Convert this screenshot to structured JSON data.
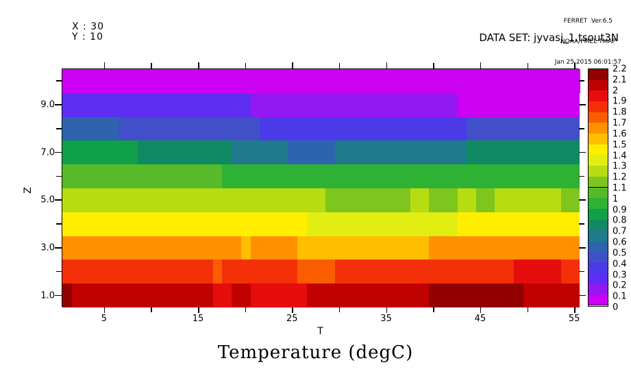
{
  "header": {
    "ferret_line1": "FERRET  Ver.6.5",
    "ferret_line2": "NOAA/PMEL TMAP",
    "ferret_line3": "Jan 25 2015 06:01:57",
    "x_index": "X : 30",
    "y_index": "Y : 10",
    "dataset": "DATA SET: jyvasj_1.tsout3N"
  },
  "title": "Temperature (degC)",
  "axes": {
    "x": {
      "label": "T",
      "major_ticks": [
        5,
        15,
        25,
        35,
        45,
        55
      ],
      "major_labels": [
        "5",
        "15",
        "25",
        "35",
        "45",
        "55"
      ],
      "minor_ticks": [
        10,
        20,
        30,
        40,
        50
      ],
      "min": 0.5,
      "max": 55.5
    },
    "y": {
      "label": "Z",
      "major_ticks": [
        9,
        7,
        5,
        3,
        1
      ],
      "major_labels": [
        "9.0",
        "7.0",
        "5.0",
        "3.0",
        "1.0"
      ],
      "minor_ticks": [
        10,
        8,
        6,
        4,
        2
      ],
      "min": 0.5,
      "max": 10.5
    }
  },
  "colorbar": {
    "min": 0,
    "max": 2.2,
    "step": 0.1,
    "boundary_labels_top_to_bottom": [
      "2.2",
      "2.1",
      "2",
      "1.9",
      "1.8",
      "1.7",
      "1.6",
      "1.5",
      "1.4",
      "1.3",
      "1.2",
      "1.1",
      "1",
      "0.9",
      "0.8",
      "0.7",
      "0.6",
      "0.5",
      "0.4",
      "0.3",
      "0.2",
      "0.1",
      "0"
    ],
    "colors_low_to_high": [
      "#cc00f2",
      "#9318f2",
      "#5d2df2",
      "#4a3ae8",
      "#4150c8",
      "#2e64ad",
      "#1e7a8c",
      "#108a62",
      "#10a04a",
      "#2eb233",
      "#58ba29",
      "#7ec61e",
      "#b8dc12",
      "#e2ee12",
      "#ffee00",
      "#ffbe00",
      "#ff9000",
      "#fa5c00",
      "#f33008",
      "#e60d0d",
      "#c10000",
      "#930000"
    ]
  },
  "chart_data": {
    "type": "heatmap",
    "title": "Temperature (degC)",
    "xlabel": "T",
    "ylabel": "Z",
    "units": "degC",
    "x_range": [
      1,
      55
    ],
    "z_range": [
      1,
      10
    ],
    "value_range": [
      0,
      2.2
    ],
    "note": "segments are [t_from, t_to, band_lower_bound]; cell value lies in band (band, band+0.1)",
    "rows": [
      {
        "z": 10,
        "segments": [
          [
            1,
            55,
            0.0
          ]
        ]
      },
      {
        "z": 9,
        "segments": [
          [
            1,
            20,
            0.2
          ],
          [
            21,
            42,
            0.1
          ],
          [
            43,
            55,
            0.0
          ]
        ]
      },
      {
        "z": 8,
        "segments": [
          [
            1,
            6,
            0.5
          ],
          [
            7,
            21,
            0.4
          ],
          [
            22,
            43,
            0.3
          ],
          [
            44,
            55,
            0.4
          ]
        ]
      },
      {
        "z": 7,
        "segments": [
          [
            1,
            8,
            0.8
          ],
          [
            9,
            18,
            0.7
          ],
          [
            19,
            24,
            0.6
          ],
          [
            25,
            29,
            0.5
          ],
          [
            30,
            43,
            0.6
          ],
          [
            44,
            55,
            0.7
          ]
        ]
      },
      {
        "z": 6,
        "segments": [
          [
            1,
            17,
            1.0
          ],
          [
            18,
            55,
            0.9
          ]
        ]
      },
      {
        "z": 5,
        "segments": [
          [
            1,
            28,
            1.2
          ],
          [
            29,
            37,
            1.1
          ],
          [
            38,
            39,
            1.2
          ],
          [
            40,
            42,
            1.1
          ],
          [
            43,
            44,
            1.2
          ],
          [
            45,
            46,
            1.1
          ],
          [
            47,
            53,
            1.2
          ],
          [
            54,
            55,
            1.1
          ]
        ]
      },
      {
        "z": 4,
        "segments": [
          [
            1,
            26,
            1.4
          ],
          [
            27,
            42,
            1.3
          ],
          [
            43,
            55,
            1.4
          ]
        ]
      },
      {
        "z": 3,
        "segments": [
          [
            1,
            19,
            1.6
          ],
          [
            20,
            20,
            1.5
          ],
          [
            21,
            25,
            1.6
          ],
          [
            26,
            39,
            1.5
          ],
          [
            40,
            55,
            1.6
          ]
        ]
      },
      {
        "z": 2,
        "segments": [
          [
            1,
            16,
            1.8
          ],
          [
            17,
            17,
            1.7
          ],
          [
            18,
            25,
            1.8
          ],
          [
            26,
            29,
            1.7
          ],
          [
            30,
            48,
            1.8
          ],
          [
            49,
            53,
            1.9
          ],
          [
            54,
            55,
            1.8
          ]
        ]
      },
      {
        "z": 1,
        "segments": [
          [
            1,
            1,
            2.1
          ],
          [
            2,
            16,
            2.0
          ],
          [
            17,
            18,
            1.9
          ],
          [
            19,
            20,
            2.0
          ],
          [
            21,
            26,
            1.9
          ],
          [
            27,
            39,
            2.0
          ],
          [
            40,
            49,
            2.1
          ],
          [
            50,
            55,
            2.0
          ]
        ]
      }
    ]
  }
}
